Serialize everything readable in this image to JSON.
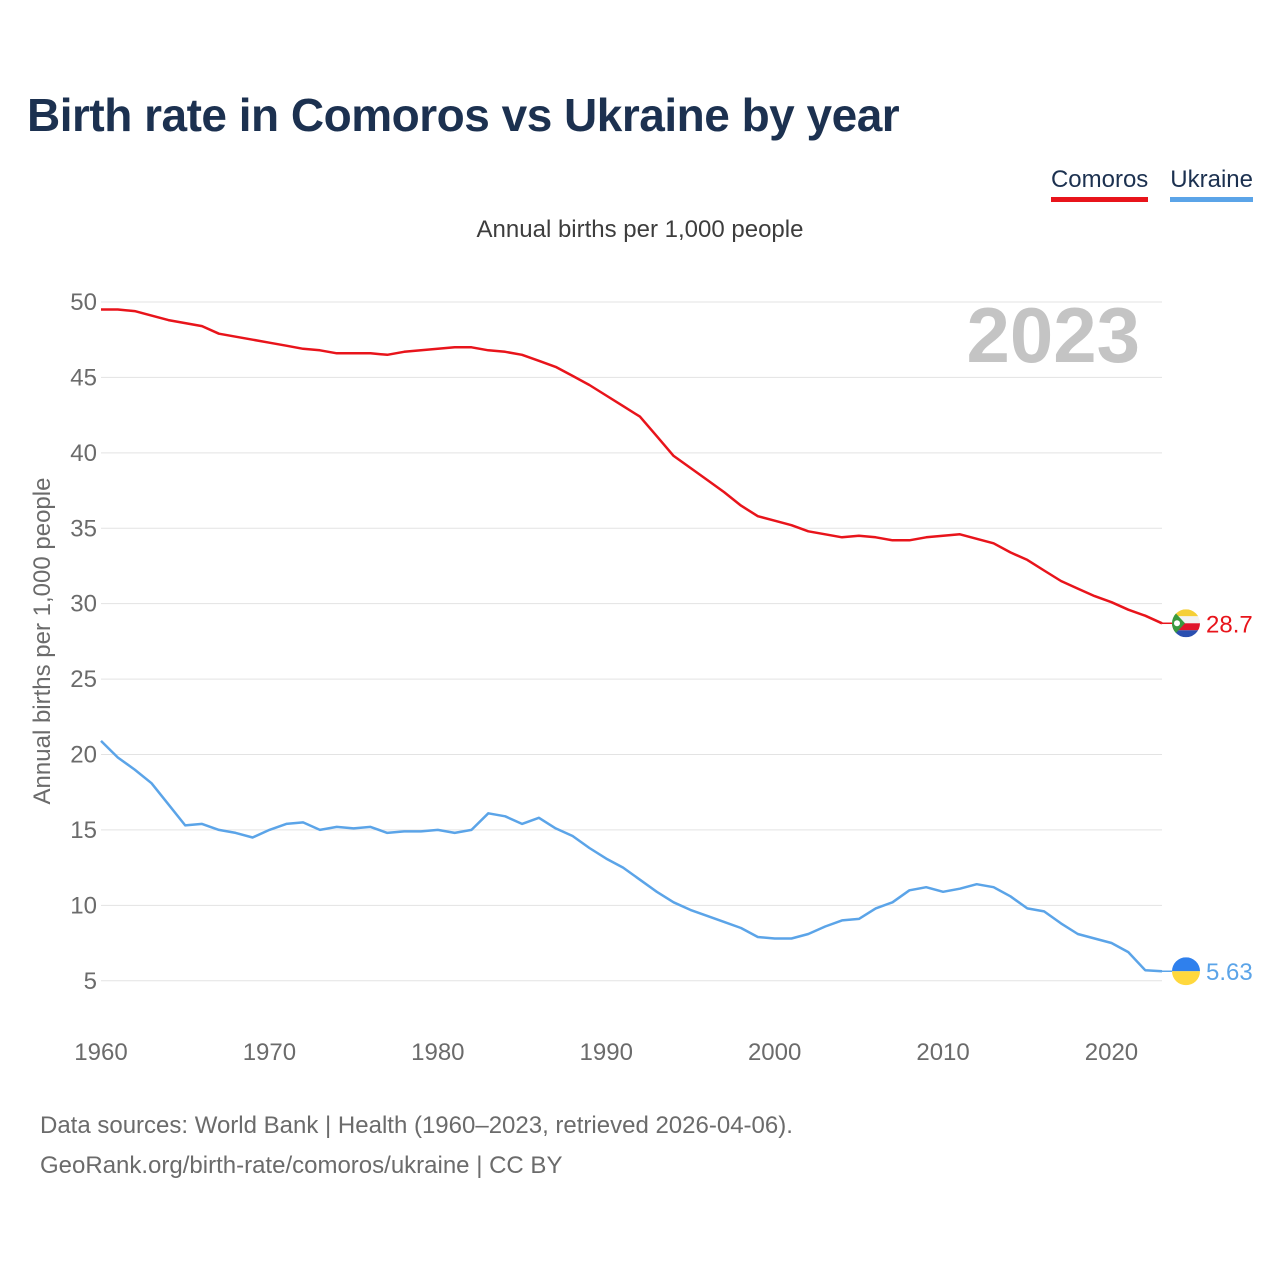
{
  "title": "Birth rate in Comoros vs Ukraine by year",
  "subtitle": "Annual births per 1,000 people",
  "legend": [
    {
      "name": "Comoros",
      "color": "#e8141b"
    },
    {
      "name": "Ukraine",
      "color": "#5ba4e8"
    }
  ],
  "source": {
    "line1": "Data sources: World Bank | Health (1960–2023, retrieved 2026-04-06).",
    "line2": "GeoRank.org/birth-rate/comoros/ukraine | CC BY"
  },
  "chart_data": {
    "type": "line",
    "title": "Birth rate in Comoros vs Ukraine by year",
    "subtitle": "Annual births per 1,000 people",
    "xlabel": "",
    "ylabel": "Annual births per 1,000 people",
    "year_label": "2023",
    "xlim": [
      1960,
      2023
    ],
    "ylim": [
      2,
      50
    ],
    "x_ticks": [
      1960,
      1970,
      1980,
      1990,
      2000,
      2010,
      2020
    ],
    "y_ticks": [
      5,
      10,
      15,
      20,
      25,
      30,
      35,
      40,
      45,
      50
    ],
    "grid": true,
    "legend_position": "top-right",
    "x": [
      1960,
      1961,
      1962,
      1963,
      1964,
      1965,
      1966,
      1967,
      1968,
      1969,
      1970,
      1971,
      1972,
      1973,
      1974,
      1975,
      1976,
      1977,
      1978,
      1979,
      1980,
      1981,
      1982,
      1983,
      1984,
      1985,
      1986,
      1987,
      1988,
      1989,
      1990,
      1991,
      1992,
      1993,
      1994,
      1995,
      1996,
      1997,
      1998,
      1999,
      2000,
      2001,
      2002,
      2003,
      2004,
      2005,
      2006,
      2007,
      2008,
      2009,
      2010,
      2011,
      2012,
      2013,
      2014,
      2015,
      2016,
      2017,
      2018,
      2019,
      2020,
      2021,
      2022,
      2023
    ],
    "series": [
      {
        "name": "Comoros",
        "color": "#e8141b",
        "end_label": "28.7",
        "values": [
          49.5,
          49.5,
          49.4,
          49.1,
          48.8,
          48.6,
          48.4,
          47.9,
          47.7,
          47.5,
          47.3,
          47.1,
          46.9,
          46.8,
          46.6,
          46.6,
          46.6,
          46.5,
          46.7,
          46.8,
          46.9,
          47.0,
          47.0,
          46.8,
          46.7,
          46.5,
          46.1,
          45.7,
          45.1,
          44.5,
          43.8,
          43.1,
          42.4,
          41.1,
          39.8,
          39.0,
          38.2,
          37.4,
          36.5,
          35.8,
          35.5,
          35.2,
          34.8,
          34.6,
          34.4,
          34.5,
          34.4,
          34.2,
          34.2,
          34.4,
          34.5,
          34.6,
          34.3,
          34.0,
          33.4,
          32.9,
          32.2,
          31.5,
          31.0,
          30.5,
          30.1,
          29.6,
          29.2,
          28.7
        ]
      },
      {
        "name": "Ukraine",
        "color": "#5ba4e8",
        "end_label": "5.63",
        "values": [
          20.9,
          19.8,
          19.0,
          18.1,
          16.7,
          15.3,
          15.4,
          15.0,
          14.8,
          14.5,
          15.0,
          15.4,
          15.5,
          15.0,
          15.2,
          15.1,
          15.2,
          14.8,
          14.9,
          14.9,
          15.0,
          14.8,
          15.0,
          16.1,
          15.9,
          15.4,
          15.8,
          15.1,
          14.6,
          13.8,
          13.1,
          12.5,
          11.7,
          10.9,
          10.2,
          9.7,
          9.3,
          8.9,
          8.5,
          7.9,
          7.8,
          7.8,
          8.1,
          8.6,
          9.0,
          9.1,
          9.8,
          10.2,
          11.0,
          11.2,
          10.9,
          11.1,
          11.4,
          11.2,
          10.6,
          9.8,
          9.6,
          8.8,
          8.1,
          7.8,
          7.5,
          6.9,
          5.7,
          5.63
        ]
      }
    ]
  }
}
